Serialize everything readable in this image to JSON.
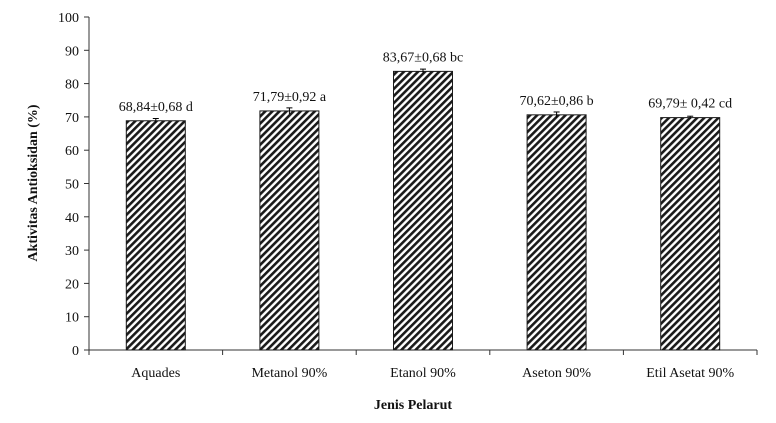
{
  "chart_data": {
    "type": "bar",
    "title": "",
    "xlabel": "Jenis Pelarut",
    "ylabel": "Aktivitas Antioksidan (%)",
    "ylim": [
      0,
      100
    ],
    "yticks": [
      0,
      10,
      20,
      30,
      40,
      50,
      60,
      70,
      80,
      90,
      100
    ],
    "categories": [
      "Aquades",
      "Metanol 90%",
      "Etanol 90%",
      "Aseton 90%",
      "Etil Asetat 90%"
    ],
    "values": [
      68.84,
      71.79,
      83.67,
      70.62,
      69.79
    ],
    "errors": [
      0.68,
      0.92,
      0.68,
      0.86,
      0.42
    ],
    "data_labels": [
      "68,84±0,68 d",
      "71,79±0,92 a",
      "83,67±0,68 bc",
      "70,62±0,86 b",
      "69,79± 0,42 cd"
    ],
    "bar_fill": "diagonal-hatch",
    "colors": {
      "bar_stroke": "#1a1a1a",
      "hatch": "#1a1a1a",
      "axis": "#333333"
    },
    "grid": false,
    "legend": "none"
  }
}
